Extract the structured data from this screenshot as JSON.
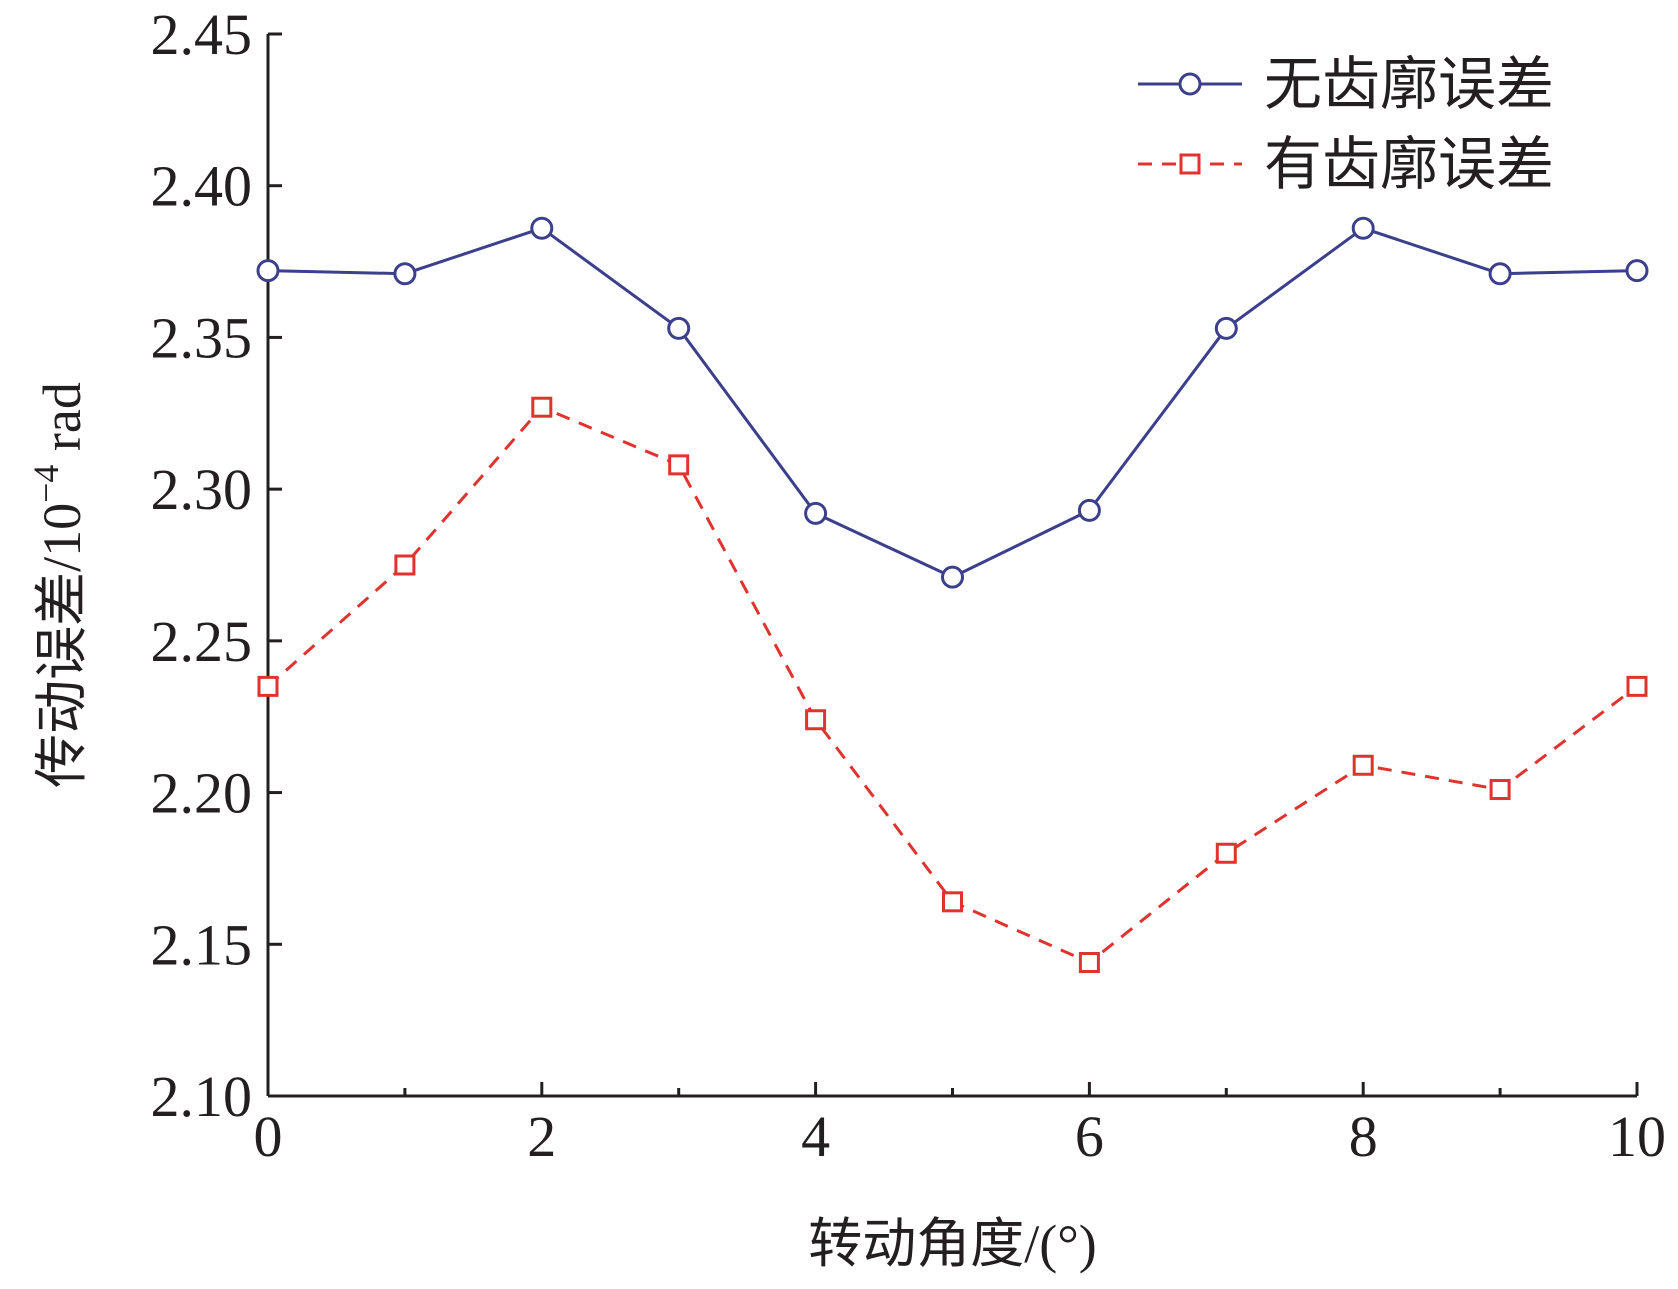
{
  "chart_data": {
    "type": "line",
    "title": "",
    "xlabel": "转动角度/(°)",
    "ylabel": "传动误差/10",
    "ylabel_exponent": "−4",
    "ylabel_unit": " rad",
    "xlim": [
      0,
      10
    ],
    "ylim": [
      2.1,
      2.45
    ],
    "x_ticks": [
      0,
      2,
      4,
      6,
      8,
      10
    ],
    "x_tick_labels": [
      "0",
      "2",
      "4",
      "6",
      "8",
      "10"
    ],
    "y_ticks": [
      2.1,
      2.15,
      2.2,
      2.25,
      2.3,
      2.35,
      2.4,
      2.45
    ],
    "y_tick_labels": [
      "2.10",
      "2.15",
      "2.20",
      "2.25",
      "2.30",
      "2.35",
      "2.40",
      "2.45"
    ],
    "grid": false,
    "legend_position": "top-right",
    "x": [
      0,
      1,
      2,
      3,
      4,
      5,
      6,
      7,
      8,
      9,
      10
    ],
    "series": [
      {
        "name": "无齿廓误差",
        "color": "#3b3f8c",
        "line_style": "solid",
        "marker": "circle",
        "values": [
          2.372,
          2.371,
          2.386,
          2.353,
          2.292,
          2.271,
          2.293,
          2.353,
          2.386,
          2.371,
          2.372
        ]
      },
      {
        "name": "有齿廓误差",
        "color": "#e0332e",
        "line_style": "dashed",
        "marker": "square",
        "values": [
          2.235,
          2.275,
          2.327,
          2.308,
          2.224,
          2.164,
          2.144,
          2.18,
          2.209,
          2.201,
          2.235
        ]
      }
    ]
  }
}
